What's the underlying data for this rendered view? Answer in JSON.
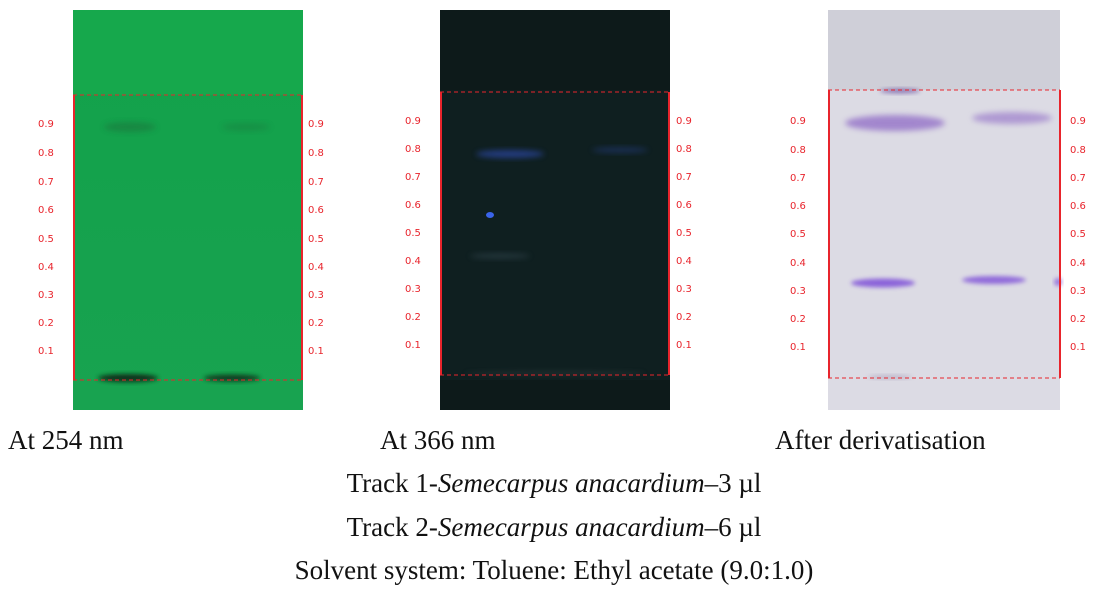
{
  "plates": [
    {
      "caption": "At 254 nm",
      "rf_labels": [
        "0.9",
        "0.8",
        "0.7",
        "0.6",
        "0.5",
        "0.4",
        "0.3",
        "0.2",
        "0.1"
      ],
      "colors": {
        "plate": "#12a14a",
        "band": "#1a5a2e",
        "guide": "#e8242c"
      }
    },
    {
      "caption": "At 366 nm",
      "rf_labels": [
        "0.9",
        "0.8",
        "0.7",
        "0.6",
        "0.5",
        "0.4",
        "0.3",
        "0.2",
        "0.1"
      ],
      "colors": {
        "plate": "#0d1a1a",
        "band": "#2d4bb0",
        "guide": "#e8242c"
      }
    },
    {
      "caption": "After derivatisation",
      "rf_labels": [
        "0.9",
        "0.8",
        "0.7",
        "0.6",
        "0.5",
        "0.4",
        "0.3",
        "0.2",
        "0.1"
      ],
      "colors": {
        "plate": "#dcdbe4",
        "band": "#8a63c4",
        "guide": "#e8242c"
      }
    }
  ],
  "legend": {
    "track1": {
      "prefix": "Track 1-",
      "species": "Semecarpus anacardium",
      "suffix": "–3 µl"
    },
    "track2": {
      "prefix": "Track 2-",
      "species": "Semecarpus anacardium",
      "suffix": "–6 µl"
    },
    "solvent": "Solvent system: Toluene: Ethyl acetate (9.0:1.0)"
  }
}
